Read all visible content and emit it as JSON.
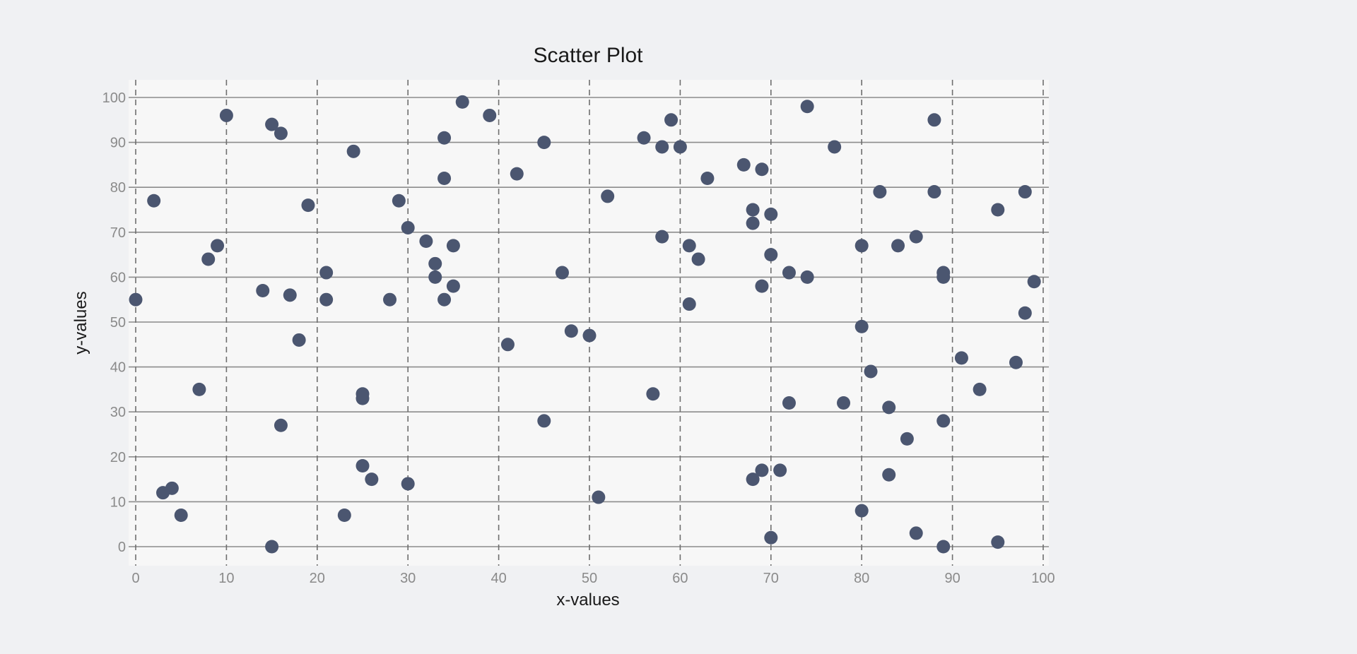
{
  "chart_data": {
    "type": "scatter",
    "title": "Scatter Plot",
    "xlabel": "x-values",
    "ylabel": "y-values",
    "xlim": [
      0,
      100
    ],
    "ylim": [
      0,
      100
    ],
    "xticks": [
      0,
      10,
      20,
      30,
      40,
      50,
      60,
      70,
      80,
      90,
      100
    ],
    "yticks": [
      0,
      10,
      20,
      30,
      40,
      50,
      60,
      70,
      80,
      90,
      100
    ],
    "grid": true,
    "colors": {
      "point": "#4b5670",
      "plot_bg": "#f7f7f7",
      "page_bg": "#f0f1f3"
    },
    "points": [
      [
        0,
        55
      ],
      [
        2,
        77
      ],
      [
        3,
        12
      ],
      [
        4,
        13
      ],
      [
        5,
        7
      ],
      [
        7,
        35
      ],
      [
        8,
        64
      ],
      [
        9,
        67
      ],
      [
        10,
        96
      ],
      [
        14,
        57
      ],
      [
        15,
        94
      ],
      [
        15,
        0
      ],
      [
        16,
        92
      ],
      [
        16,
        27
      ],
      [
        17,
        56
      ],
      [
        18,
        46
      ],
      [
        19,
        76
      ],
      [
        21,
        61
      ],
      [
        21,
        55
      ],
      [
        23,
        7
      ],
      [
        24,
        88
      ],
      [
        25,
        34
      ],
      [
        25,
        33
      ],
      [
        25,
        18
      ],
      [
        26,
        15
      ],
      [
        28,
        55
      ],
      [
        29,
        77
      ],
      [
        30,
        71
      ],
      [
        30,
        14
      ],
      [
        32,
        68
      ],
      [
        33,
        63
      ],
      [
        33,
        60
      ],
      [
        34,
        91
      ],
      [
        34,
        82
      ],
      [
        34,
        55
      ],
      [
        35,
        67
      ],
      [
        35,
        58
      ],
      [
        36,
        99
      ],
      [
        39,
        96
      ],
      [
        41,
        45
      ],
      [
        42,
        83
      ],
      [
        45,
        90
      ],
      [
        45,
        28
      ],
      [
        47,
        61
      ],
      [
        48,
        48
      ],
      [
        50,
        47
      ],
      [
        51,
        11
      ],
      [
        52,
        78
      ],
      [
        56,
        91
      ],
      [
        57,
        34
      ],
      [
        58,
        89
      ],
      [
        58,
        69
      ],
      [
        59,
        95
      ],
      [
        60,
        89
      ],
      [
        61,
        67
      ],
      [
        61,
        54
      ],
      [
        62,
        64
      ],
      [
        63,
        82
      ],
      [
        67,
        85
      ],
      [
        68,
        75
      ],
      [
        68,
        72
      ],
      [
        68,
        15
      ],
      [
        69,
        84
      ],
      [
        69,
        58
      ],
      [
        69,
        17
      ],
      [
        70,
        74
      ],
      [
        70,
        65
      ],
      [
        70,
        2
      ],
      [
        71,
        17
      ],
      [
        72,
        61
      ],
      [
        72,
        32
      ],
      [
        74,
        98
      ],
      [
        74,
        60
      ],
      [
        77,
        89
      ],
      [
        78,
        32
      ],
      [
        80,
        67
      ],
      [
        80,
        49
      ],
      [
        80,
        8
      ],
      [
        81,
        39
      ],
      [
        82,
        79
      ],
      [
        83,
        31
      ],
      [
        83,
        16
      ],
      [
        84,
        67
      ],
      [
        85,
        24
      ],
      [
        86,
        69
      ],
      [
        86,
        3
      ],
      [
        88,
        95
      ],
      [
        88,
        79
      ],
      [
        89,
        61
      ],
      [
        89,
        60
      ],
      [
        89,
        28
      ],
      [
        89,
        0
      ],
      [
        91,
        42
      ],
      [
        93,
        35
      ],
      [
        95,
        75
      ],
      [
        95,
        1
      ],
      [
        97,
        41
      ],
      [
        98,
        79
      ],
      [
        98,
        52
      ],
      [
        99,
        59
      ]
    ]
  }
}
